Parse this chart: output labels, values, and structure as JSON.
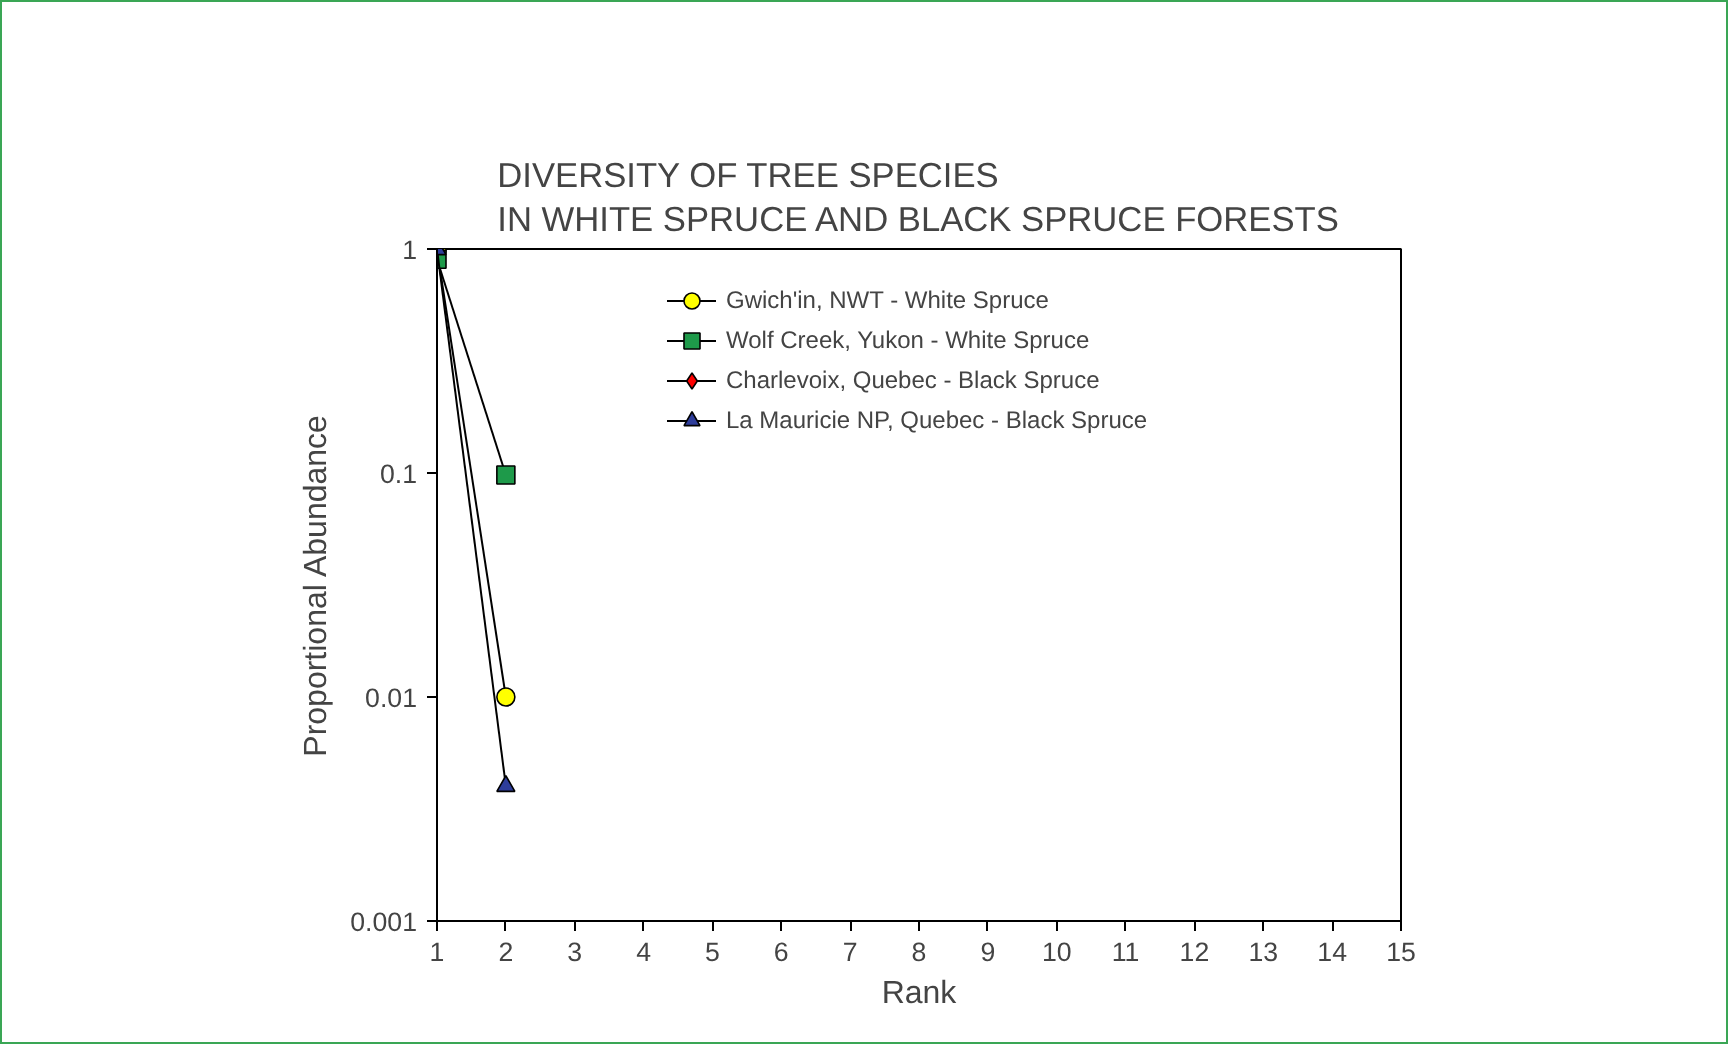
{
  "chart_data": {
    "type": "line",
    "title": "DIVERSITY OF TREE SPECIES\nIN WHITE SPRUCE AND BLACK SPRUCE FORESTS",
    "xlabel": "Rank",
    "ylabel": "Proportional Abundance",
    "log": "y",
    "xlim": [
      1,
      15
    ],
    "xticks": [
      1,
      2,
      3,
      4,
      5,
      6,
      7,
      8,
      9,
      10,
      11,
      12,
      13,
      14,
      15
    ],
    "ylim": [
      0.001,
      1
    ],
    "yticks": [
      0.001,
      0.01,
      0.1,
      1
    ],
    "legend": "top right",
    "x": [
      1,
      2
    ],
    "series": [
      {
        "name": "Gwich'in, NWT - White Spruce",
        "color": "#ffff00",
        "marker": "circle",
        "values": [
          0.99,
          0.01
        ]
      },
      {
        "name": "Wolf Creek, Yukon - White Spruce",
        "color": "#1e9a4a",
        "marker": "square",
        "values": [
          0.9,
          0.098
        ]
      },
      {
        "name": "Charlevoix, Quebec - Black Spruce",
        "color": "#ff0000",
        "marker": "diamond",
        "values": [
          null,
          null
        ]
      },
      {
        "name": "La Mauricie NP, Quebec - Black Spruce",
        "color": "#2e3d9a",
        "marker": "triangle",
        "values": [
          0.996,
          0.004
        ]
      }
    ]
  }
}
